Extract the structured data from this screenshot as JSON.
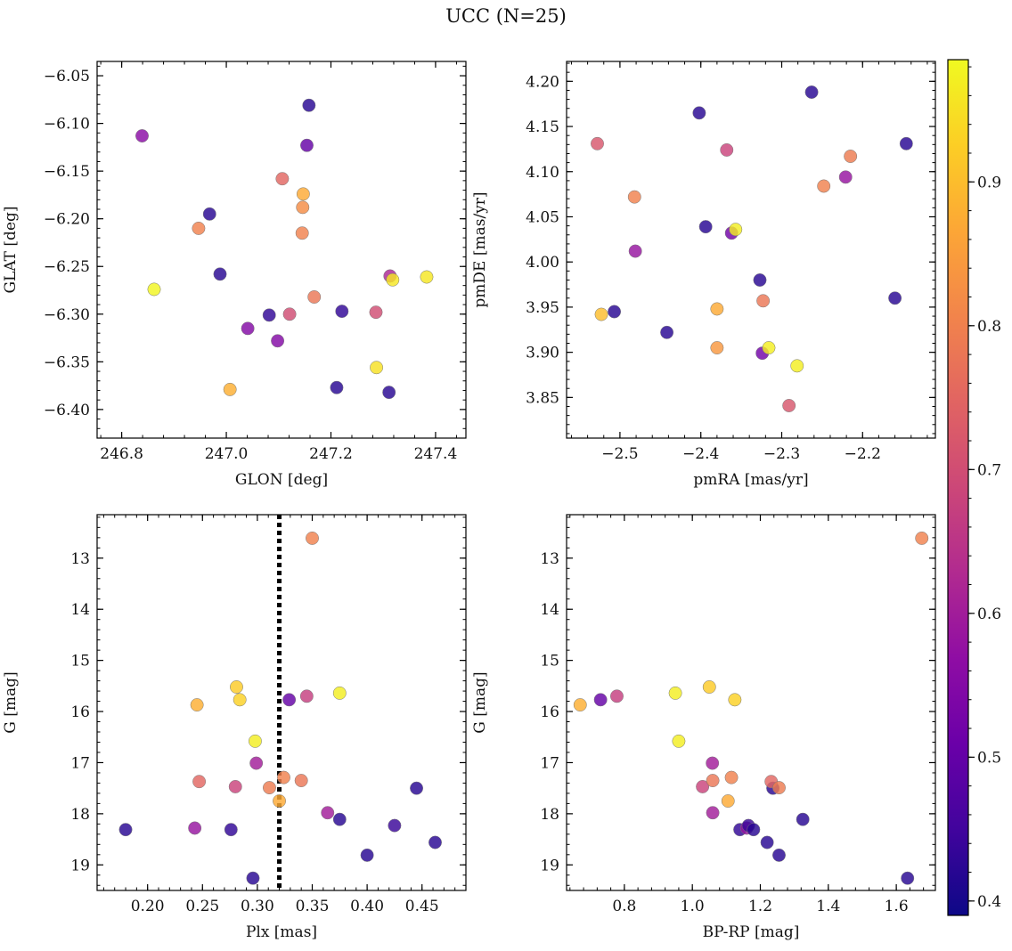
{
  "figure": {
    "title": "UCC (N=25)"
  },
  "colorbar": {
    "cmap": "plasma",
    "vmin": 0.39,
    "vmax": 0.985,
    "ticks": [
      0.4,
      0.5,
      0.6,
      0.7,
      0.8,
      0.9
    ],
    "tick_labels": [
      "0.4",
      "0.5",
      "0.6",
      "0.7",
      "0.8",
      "0.9"
    ]
  },
  "chart_data": [
    {
      "type": "scatter",
      "xlabel": "GLON [deg]",
      "ylabel": "GLAT [deg]",
      "xlim": [
        246.753,
        247.458
      ],
      "ylim": [
        -6.43,
        -6.035
      ],
      "xticks": [
        246.8,
        247.0,
        247.2,
        247.4
      ],
      "xtick_labels": [
        "246.8",
        "247.0",
        "247.2",
        "247.4"
      ],
      "yticks": [
        -6.05,
        -6.1,
        -6.15,
        -6.2,
        -6.25,
        -6.3,
        -6.35,
        -6.4
      ],
      "ytick_labels": [
        "−6.05",
        "−6.10",
        "−6.15",
        "−6.20",
        "−6.25",
        "−6.30",
        "−6.35",
        "−6.40"
      ],
      "points": [
        {
          "x": 246.839,
          "y": -6.113,
          "c": 0.56
        },
        {
          "x": 246.862,
          "y": -6.274,
          "c": 0.98
        },
        {
          "x": 246.947,
          "y": -6.21,
          "c": 0.8
        },
        {
          "x": 246.968,
          "y": -6.195,
          "c": 0.42
        },
        {
          "x": 246.988,
          "y": -6.258,
          "c": 0.42
        },
        {
          "x": 247.007,
          "y": -6.379,
          "c": 0.88
        },
        {
          "x": 247.041,
          "y": -6.315,
          "c": 0.55
        },
        {
          "x": 247.082,
          "y": -6.301,
          "c": 0.43
        },
        {
          "x": 247.098,
          "y": -6.328,
          "c": 0.55
        },
        {
          "x": 247.107,
          "y": -6.158,
          "c": 0.75
        },
        {
          "x": 247.121,
          "y": -6.3,
          "c": 0.7
        },
        {
          "x": 247.145,
          "y": -6.215,
          "c": 0.8
        },
        {
          "x": 247.146,
          "y": -6.188,
          "c": 0.82
        },
        {
          "x": 247.147,
          "y": -6.174,
          "c": 0.87
        },
        {
          "x": 247.154,
          "y": -6.123,
          "c": 0.5
        },
        {
          "x": 247.158,
          "y": -6.081,
          "c": 0.42
        },
        {
          "x": 247.168,
          "y": -6.282,
          "c": 0.78
        },
        {
          "x": 247.211,
          "y": -6.377,
          "c": 0.42
        },
        {
          "x": 247.221,
          "y": -6.297,
          "c": 0.43
        },
        {
          "x": 247.286,
          "y": -6.298,
          "c": 0.7
        },
        {
          "x": 247.287,
          "y": -6.356,
          "c": 0.95
        },
        {
          "x": 247.311,
          "y": -6.382,
          "c": 0.42
        },
        {
          "x": 247.313,
          "y": -6.26,
          "c": 0.62
        },
        {
          "x": 247.318,
          "y": -6.264,
          "c": 0.96
        },
        {
          "x": 247.383,
          "y": -6.261,
          "c": 0.96
        }
      ]
    },
    {
      "type": "scatter",
      "xlabel": "pmRA [mas/yr]",
      "ylabel": "pmDE [mas/yr]",
      "xlim": [
        -2.566,
        -2.11
      ],
      "ylim": [
        3.805,
        4.222
      ],
      "xticks": [
        -2.5,
        -2.4,
        -2.3,
        -2.2
      ],
      "xtick_labels": [
        "−2.5",
        "−2.4",
        "−2.3",
        "−2.2"
      ],
      "yticks": [
        3.85,
        3.9,
        3.95,
        4.0,
        4.05,
        4.1,
        4.15,
        4.2
      ],
      "ytick_labels": [
        "3.85",
        "3.90",
        "3.95",
        "4.00",
        "4.05",
        "4.10",
        "4.15",
        "4.20"
      ],
      "points": [
        {
          "x": -2.528,
          "y": 4.131,
          "c": 0.72
        },
        {
          "x": -2.523,
          "y": 3.942,
          "c": 0.9
        },
        {
          "x": -2.507,
          "y": 3.945,
          "c": 0.42
        },
        {
          "x": -2.482,
          "y": 4.072,
          "c": 0.8
        },
        {
          "x": -2.481,
          "y": 4.012,
          "c": 0.58
        },
        {
          "x": -2.442,
          "y": 3.922,
          "c": 0.42
        },
        {
          "x": -2.402,
          "y": 4.165,
          "c": 0.42
        },
        {
          "x": -2.394,
          "y": 4.039,
          "c": 0.42
        },
        {
          "x": -2.38,
          "y": 3.948,
          "c": 0.87
        },
        {
          "x": -2.38,
          "y": 3.905,
          "c": 0.84
        },
        {
          "x": -2.368,
          "y": 4.124,
          "c": 0.68
        },
        {
          "x": -2.362,
          "y": 4.032,
          "c": 0.52
        },
        {
          "x": -2.357,
          "y": 4.036,
          "c": 0.97
        },
        {
          "x": -2.327,
          "y": 3.98,
          "c": 0.42
        },
        {
          "x": -2.324,
          "y": 3.899,
          "c": 0.52
        },
        {
          "x": -2.323,
          "y": 3.957,
          "c": 0.78
        },
        {
          "x": -2.316,
          "y": 3.905,
          "c": 0.97
        },
        {
          "x": -2.291,
          "y": 3.841,
          "c": 0.72
        },
        {
          "x": -2.281,
          "y": 3.885,
          "c": 0.97
        },
        {
          "x": -2.263,
          "y": 4.188,
          "c": 0.42
        },
        {
          "x": -2.248,
          "y": 4.084,
          "c": 0.8
        },
        {
          "x": -2.221,
          "y": 4.094,
          "c": 0.58
        },
        {
          "x": -2.215,
          "y": 4.117,
          "c": 0.79
        },
        {
          "x": -2.16,
          "y": 3.96,
          "c": 0.42
        },
        {
          "x": -2.146,
          "y": 4.131,
          "c": 0.42
        }
      ]
    },
    {
      "type": "scatter",
      "xlabel": "Plx [mas]",
      "ylabel": "G [mag]",
      "xlim": [
        0.154,
        0.49
      ],
      "ylim": [
        19.5,
        12.15
      ],
      "y_inverted": true,
      "xticks": [
        0.2,
        0.25,
        0.3,
        0.35,
        0.4,
        0.45
      ],
      "xtick_labels": [
        "0.20",
        "0.25",
        "0.30",
        "0.35",
        "0.40",
        "0.45"
      ],
      "yticks": [
        13,
        14,
        15,
        16,
        17,
        18,
        19
      ],
      "ytick_labels": [
        "13",
        "14",
        "15",
        "16",
        "17",
        "18",
        "19"
      ],
      "vline_x": 0.32,
      "points": [
        {
          "x": 0.18,
          "y": 18.31,
          "c": 0.42
        },
        {
          "x": 0.243,
          "y": 18.28,
          "c": 0.58
        },
        {
          "x": 0.245,
          "y": 15.87,
          "c": 0.88
        },
        {
          "x": 0.247,
          "y": 17.37,
          "c": 0.75
        },
        {
          "x": 0.276,
          "y": 18.31,
          "c": 0.43
        },
        {
          "x": 0.28,
          "y": 17.47,
          "c": 0.68
        },
        {
          "x": 0.281,
          "y": 15.52,
          "c": 0.92
        },
        {
          "x": 0.284,
          "y": 15.77,
          "c": 0.93
        },
        {
          "x": 0.296,
          "y": 19.26,
          "c": 0.42
        },
        {
          "x": 0.298,
          "y": 16.58,
          "c": 0.97
        },
        {
          "x": 0.299,
          "y": 17.01,
          "c": 0.6
        },
        {
          "x": 0.311,
          "y": 17.49,
          "c": 0.79
        },
        {
          "x": 0.32,
          "y": 17.75,
          "c": 0.87
        },
        {
          "x": 0.324,
          "y": 17.29,
          "c": 0.8
        },
        {
          "x": 0.329,
          "y": 15.77,
          "c": 0.5
        },
        {
          "x": 0.34,
          "y": 17.35,
          "c": 0.78
        },
        {
          "x": 0.345,
          "y": 15.7,
          "c": 0.67
        },
        {
          "x": 0.35,
          "y": 12.61,
          "c": 0.8
        },
        {
          "x": 0.364,
          "y": 17.98,
          "c": 0.6
        },
        {
          "x": 0.375,
          "y": 15.64,
          "c": 0.97
        },
        {
          "x": 0.375,
          "y": 18.11,
          "c": 0.42
        },
        {
          "x": 0.4,
          "y": 18.81,
          "c": 0.42
        },
        {
          "x": 0.425,
          "y": 18.23,
          "c": 0.44
        },
        {
          "x": 0.445,
          "y": 17.5,
          "c": 0.42
        },
        {
          "x": 0.462,
          "y": 18.56,
          "c": 0.42
        }
      ]
    },
    {
      "type": "scatter",
      "xlabel": "BP-RP [mag]",
      "ylabel": "G [mag]",
      "xlim": [
        0.63,
        1.715
      ],
      "ylim": [
        19.5,
        12.15
      ],
      "y_inverted": true,
      "xticks": [
        0.8,
        1.0,
        1.2,
        1.4,
        1.6
      ],
      "xtick_labels": [
        "0.8",
        "1.0",
        "1.2",
        "1.4",
        "1.6"
      ],
      "yticks": [
        13,
        14,
        15,
        16,
        17,
        18,
        19
      ],
      "ytick_labels": [
        "13",
        "14",
        "15",
        "16",
        "17",
        "18",
        "19"
      ],
      "points": [
        {
          "x": 0.67,
          "y": 15.87,
          "c": 0.88
        },
        {
          "x": 0.73,
          "y": 15.77,
          "c": 0.5
        },
        {
          "x": 0.778,
          "y": 15.7,
          "c": 0.67
        },
        {
          "x": 0.95,
          "y": 15.64,
          "c": 0.97
        },
        {
          "x": 0.96,
          "y": 16.58,
          "c": 0.97
        },
        {
          "x": 1.03,
          "y": 17.47,
          "c": 0.68
        },
        {
          "x": 1.05,
          "y": 15.52,
          "c": 0.92
        },
        {
          "x": 1.059,
          "y": 17.01,
          "c": 0.6
        },
        {
          "x": 1.06,
          "y": 17.98,
          "c": 0.6
        },
        {
          "x": 1.06,
          "y": 17.35,
          "c": 0.78
        },
        {
          "x": 1.105,
          "y": 17.75,
          "c": 0.87
        },
        {
          "x": 1.115,
          "y": 17.29,
          "c": 0.8
        },
        {
          "x": 1.125,
          "y": 15.77,
          "c": 0.93
        },
        {
          "x": 1.14,
          "y": 18.31,
          "c": 0.43
        },
        {
          "x": 1.16,
          "y": 18.28,
          "c": 0.58
        },
        {
          "x": 1.165,
          "y": 18.23,
          "c": 0.44
        },
        {
          "x": 1.18,
          "y": 18.31,
          "c": 0.42
        },
        {
          "x": 1.22,
          "y": 18.56,
          "c": 0.42
        },
        {
          "x": 1.237,
          "y": 17.5,
          "c": 0.42
        },
        {
          "x": 1.232,
          "y": 17.37,
          "c": 0.75
        },
        {
          "x": 1.255,
          "y": 17.49,
          "c": 0.79
        },
        {
          "x": 1.255,
          "y": 18.81,
          "c": 0.42
        },
        {
          "x": 1.325,
          "y": 18.11,
          "c": 0.42
        },
        {
          "x": 1.633,
          "y": 19.26,
          "c": 0.42
        },
        {
          "x": 1.675,
          "y": 12.61,
          "c": 0.8
        }
      ]
    }
  ]
}
